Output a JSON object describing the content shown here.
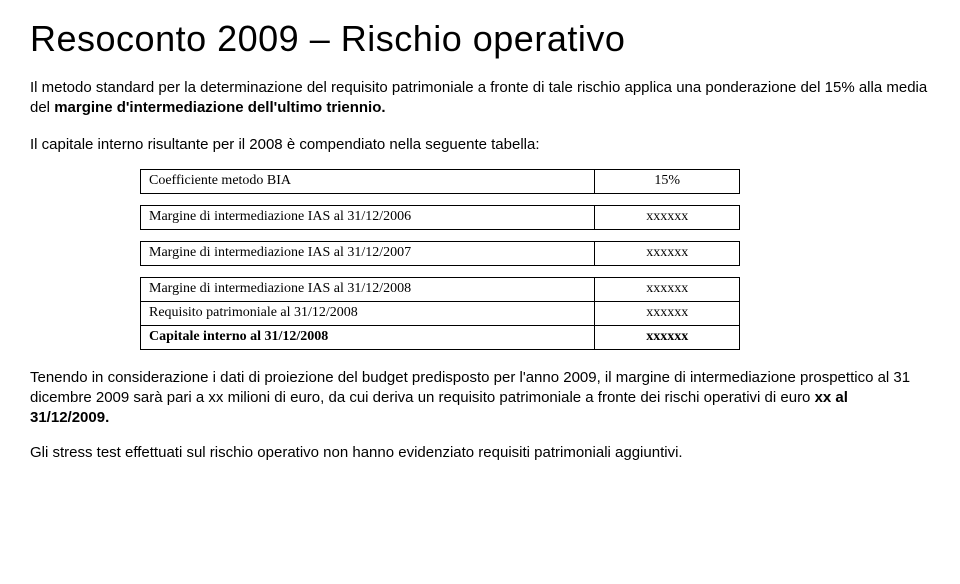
{
  "title": "Resoconto 2009 – Rischio operativo",
  "para1_a": "Il metodo standard per la determinazione del requisito patrimoniale a fronte di tale rischio applica una ponderazione del 15% alla media del ",
  "para1_b": "margine d'intermediazione dell'ultimo triennio.",
  "para2": "Il capitale interno risultante per il 2008 è compendiato nella seguente tabella:",
  "table": {
    "rows": [
      {
        "label": "Coefficiente metodo BIA",
        "value": "15%"
      },
      {
        "label": "Margine di intermediazione IAS al 31/12/2006",
        "value": "xxxxxx"
      },
      {
        "label": "Margine di intermediazione IAS al 31/12/2007",
        "value": "xxxxxx"
      },
      {
        "label": "Margine di intermediazione IAS al 31/12/2008",
        "value": "xxxxxx"
      },
      {
        "label": "Requisito patrimoniale al 31/12/2008",
        "value": "xxxxxx"
      },
      {
        "label": "Capitale interno al 31/12/2008",
        "value": "xxxxxx"
      }
    ]
  },
  "para3_a": "Tenendo in considerazione i dati di proiezione del budget predisposto per l'anno 2009, il margine di intermediazione prospettico al 31 dicembre 2009 sarà pari a xx milioni di euro, da cui deriva un requisito patrimoniale a fronte dei rischi operativi di euro ",
  "para3_b": "xx al 31/12/2009.",
  "para4": "Gli stress test effettuati sul rischio operativo non hanno evidenziato requisiti patrimoniali aggiuntivi."
}
